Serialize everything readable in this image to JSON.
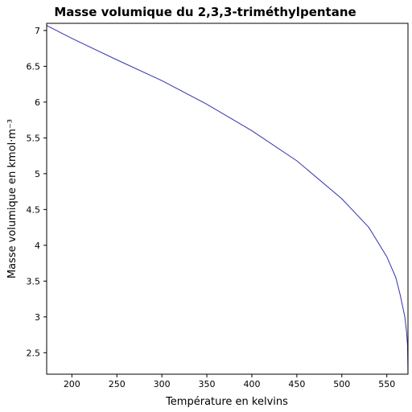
{
  "chart_data": {
    "type": "line",
    "title": "Masse volumique du 2,3,3-triméthylpentane",
    "xlabel": "Température en kelvins",
    "ylabel": "Masse volumique en kmol·m⁻³",
    "xlim": [
      172,
      573.5
    ],
    "ylim": [
      2.2,
      7.1
    ],
    "x_ticks": [
      200,
      250,
      300,
      350,
      400,
      450,
      500,
      550
    ],
    "x_tick_labels": [
      "200",
      "250",
      "300",
      "350",
      "400",
      "450",
      "500",
      "550"
    ],
    "y_ticks": [
      2.5,
      3,
      3.5,
      4,
      4.5,
      5,
      5.5,
      6,
      6.5,
      7
    ],
    "y_tick_labels": [
      "2.5",
      "3",
      "3.5",
      "4",
      "4.5",
      "5",
      "5.5",
      "6",
      "6.5",
      "7"
    ],
    "grid": false,
    "series": [
      {
        "color": "#3333aa",
        "x": [
          172,
          200,
          250,
          300,
          350,
          400,
          450,
          500,
          530,
          550,
          560,
          565,
          570,
          572,
          573,
          573.5
        ],
        "y": [
          7.07,
          6.89,
          6.59,
          6.3,
          5.97,
          5.6,
          5.18,
          4.65,
          4.25,
          3.84,
          3.55,
          3.3,
          3.0,
          2.78,
          2.6,
          2.2
        ]
      }
    ]
  }
}
